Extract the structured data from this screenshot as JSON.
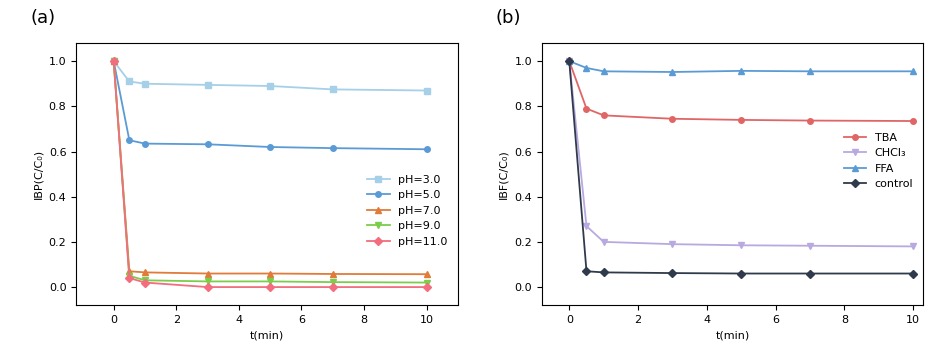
{
  "chart_data": [
    {
      "type": "line",
      "annotations": [
        "(a)"
      ],
      "x_label": "t(min)",
      "y_label": "IBP(C/C₀)",
      "x": [
        0,
        0.5,
        1,
        3,
        5,
        7,
        10
      ],
      "xlim": [
        -1.2,
        11
      ],
      "xticks": [
        0,
        2,
        4,
        6,
        8,
        10
      ],
      "ylim": [
        -0.08,
        1.08
      ],
      "yticks": [
        {
          "value": 0.0,
          "label": "0.0"
        },
        {
          "value": 0.2,
          "label": "0.2"
        },
        {
          "value": 0.4,
          "label": "0.4"
        },
        {
          "value": 0.6,
          "label": "0.6"
        },
        {
          "value": 0.8,
          "label": "0.8"
        },
        {
          "value": 1.0,
          "label": "1.0"
        }
      ],
      "legend": "center right",
      "series": [
        {
          "name": "pH=3.0",
          "color": "#a6cfe8",
          "marker": "square",
          "values": [
            1.0,
            0.91,
            0.9,
            0.895,
            0.89,
            0.875,
            0.87
          ]
        },
        {
          "name": "pH=5.0",
          "color": "#5b9bd5",
          "marker": "circle",
          "values": [
            1.0,
            0.65,
            0.635,
            0.632,
            0.62,
            0.615,
            0.61
          ]
        },
        {
          "name": "pH=7.0",
          "color": "#e07b39",
          "marker": "triangle_up",
          "values": [
            1.0,
            0.07,
            0.065,
            0.06,
            0.06,
            0.058,
            0.057
          ]
        },
        {
          "name": "pH=9.0",
          "color": "#7ccd4a",
          "marker": "triangle_down",
          "values": [
            1.0,
            0.05,
            0.03,
            0.025,
            0.025,
            0.022,
            0.02
          ]
        },
        {
          "name": "pH=11.0",
          "color": "#f26d7d",
          "marker": "diamond",
          "values": [
            1.0,
            0.04,
            0.02,
            0.0,
            0.0,
            0.0,
            0.0
          ]
        }
      ]
    },
    {
      "type": "line",
      "annotations": [
        "(b)"
      ],
      "x_label": "t(min)",
      "y_label": "IBF(C/C₀)",
      "x": [
        0,
        0.5,
        1,
        3,
        5,
        7,
        10
      ],
      "xlim": [
        -0.8,
        10.3
      ],
      "xticks": [
        0,
        2,
        4,
        6,
        8,
        10
      ],
      "ylim": [
        -0.08,
        1.08
      ],
      "yticks": [
        {
          "value": 0.0,
          "label": "0.0"
        },
        {
          "value": 0.2,
          "label": "0.2"
        },
        {
          "value": 0.4,
          "label": "0.4"
        },
        {
          "value": 0.6,
          "label": "0.6"
        },
        {
          "value": 0.8,
          "label": "0.8"
        },
        {
          "value": 1.0,
          "label": "1.0"
        }
      ],
      "legend": "center right",
      "series": [
        {
          "name": "TBA",
          "color": "#e06666",
          "marker": "circle",
          "values": [
            1.0,
            0.79,
            0.76,
            0.745,
            0.74,
            0.737,
            0.735
          ]
        },
        {
          "name": "CHCl₃",
          "color": "#b8a9e0",
          "marker": "triangle_down",
          "values": [
            1.0,
            0.27,
            0.2,
            0.19,
            0.185,
            0.183,
            0.18
          ]
        },
        {
          "name": "FFA",
          "color": "#5b9bd5",
          "marker": "triangle_up",
          "values": [
            1.0,
            0.97,
            0.955,
            0.952,
            0.957,
            0.955,
            0.955
          ]
        },
        {
          "name": "control",
          "color": "#2f3b4c",
          "marker": "diamond",
          "values": [
            1.0,
            0.07,
            0.065,
            0.062,
            0.06,
            0.06,
            0.06
          ]
        }
      ]
    }
  ]
}
